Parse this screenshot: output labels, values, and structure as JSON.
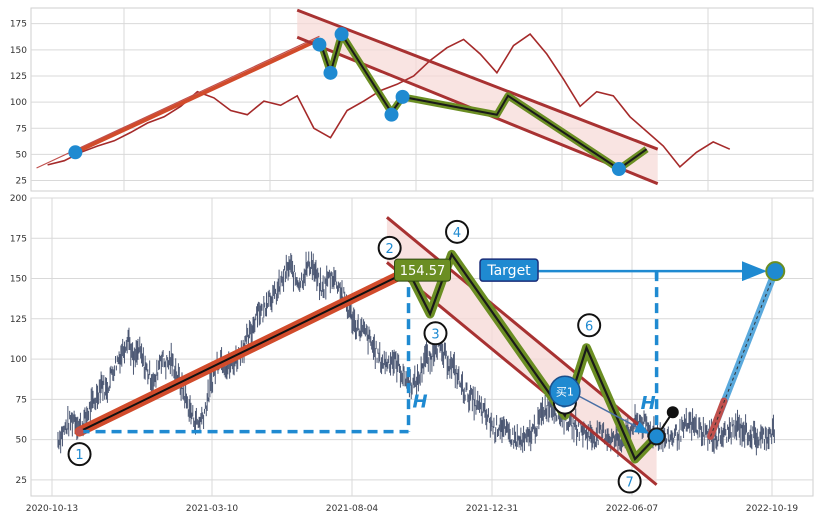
{
  "chart_data": [
    {
      "type": "line",
      "panel": "overview",
      "ylim": [
        15,
        190
      ],
      "yticks": [
        "25",
        "50",
        "75",
        "100",
        "125",
        "150",
        "175"
      ],
      "series": [
        {
          "color": "#a52a2a",
          "x": [
            0,
            3,
            6,
            9,
            12,
            15,
            18,
            21,
            24,
            27,
            30,
            33,
            36,
            39,
            42,
            45,
            48,
            51,
            54,
            57,
            60,
            63,
            66,
            69,
            72,
            75,
            78,
            81,
            84,
            87,
            90,
            93,
            96,
            99,
            102,
            105,
            108,
            111,
            114,
            117,
            120,
            123
          ],
          "values": [
            40,
            44,
            52,
            58,
            63,
            71,
            80,
            86,
            96,
            110,
            104,
            92,
            88,
            101,
            97,
            106,
            75,
            66,
            92,
            101,
            111,
            117,
            125,
            140,
            152,
            160,
            146,
            128,
            154,
            165,
            146,
            122,
            96,
            110,
            106,
            86,
            72,
            58,
            38,
            52,
            62,
            55
          ]
        }
      ],
      "uptrend_line": {
        "x": [
          5,
          49
        ],
        "values": [
          52,
          160
        ]
      },
      "channel_upper": {
        "x": [
          45,
          110
        ],
        "values": [
          188,
          55
        ]
      },
      "channel_lower": {
        "x": [
          45,
          110
        ],
        "values": [
          162,
          22
        ]
      },
      "pattern_path": {
        "x": [
          49,
          51,
          53,
          62,
          64,
          81,
          83,
          103,
          108
        ],
        "values": [
          160,
          128,
          165,
          90,
          105,
          88,
          106,
          36,
          55
        ]
      },
      "pivots": {
        "x": [
          5,
          49,
          51,
          53,
          62,
          64,
          103
        ],
        "values": [
          52,
          155,
          128,
          165,
          88,
          105,
          36
        ]
      }
    },
    {
      "type": "line",
      "panel": "detail",
      "ylim": [
        15,
        200
      ],
      "yticks": [
        "25",
        "50",
        "75",
        "100",
        "125",
        "150",
        "175",
        "200"
      ],
      "x_dates": [
        "2020-10-13",
        "2021-03-10",
        "2021-08-04",
        "2021-12-31",
        "2022-06-07",
        "2022-10-19"
      ],
      "price_points": {
        "x": [
          0,
          2,
          4,
          6,
          8,
          10,
          12,
          14,
          16,
          18,
          20,
          22,
          24,
          26,
          28,
          30,
          32,
          34,
          36,
          38,
          40,
          42,
          44,
          46,
          48,
          50,
          52,
          54,
          56,
          58,
          60,
          62,
          64,
          66,
          68,
          70,
          72,
          74,
          76,
          78,
          80,
          82,
          84,
          86,
          88,
          90,
          92,
          94,
          96,
          98,
          100,
          102,
          104,
          106,
          108,
          110,
          112,
          114,
          116,
          118,
          120,
          122,
          124,
          126,
          128,
          130,
          132,
          134,
          136,
          138,
          140,
          142,
          144,
          146,
          148,
          150,
          152,
          154,
          156,
          158,
          160,
          162,
          164,
          166,
          168,
          170,
          172,
          174,
          176,
          178,
          180,
          182,
          184,
          186,
          188,
          190,
          192,
          194,
          196,
          198,
          200,
          202,
          204,
          206,
          208,
          210,
          212,
          214,
          216,
          218,
          220,
          222,
          224,
          226,
          228,
          230,
          232,
          234,
          236,
          238,
          240,
          242,
          244,
          246,
          248,
          250,
          252,
          254,
          256,
          258,
          260,
          262,
          264,
          266
        ],
        "values": [
          50,
          55,
          60,
          64,
          58,
          62,
          70,
          75,
          86,
          80,
          92,
          99,
          105,
          115,
          98,
          106,
          96,
          90,
          85,
          102,
          97,
          99,
          91,
          82,
          72,
          64,
          60,
          66,
          78,
          92,
          102,
          96,
          95,
          100,
          106,
          111,
          118,
          132,
          128,
          140,
          138,
          144,
          152,
          158,
          150,
          148,
          156,
          160,
          150,
          142,
          150,
          152,
          146,
          138,
          130,
          122,
          118,
          116,
          110,
          104,
          98,
          98,
          100,
          96,
          90,
          86,
          84,
          88,
          102,
          98,
          110,
          104,
          100,
          96,
          90,
          82,
          78,
          74,
          70,
          66,
          62,
          56,
          60,
          54,
          52,
          50,
          48,
          50,
          55,
          60,
          68,
          72,
          70,
          66,
          64,
          60,
          58,
          56,
          54,
          52,
          52,
          54,
          52,
          50,
          50,
          52,
          55,
          60,
          62,
          58,
          56,
          54,
          52,
          50,
          52,
          54,
          56,
          60,
          58,
          56,
          54,
          52,
          50,
          52,
          54,
          56,
          58,
          56,
          54,
          52,
          50,
          52,
          54,
          56
        ]
      },
      "uptrend_line": {
        "x": [
          8,
          130
        ],
        "values": [
          55,
          154.57
        ]
      },
      "channel_upper": {
        "x": [
          122,
          222
        ],
        "values": [
          188,
          50
        ]
      },
      "channel_lower": {
        "x": [
          122,
          222
        ],
        "values": [
          160,
          22
        ]
      },
      "pattern_path": {
        "x": [
          130,
          138,
          146,
          188,
          196,
          214,
          222
        ],
        "values": [
          154.57,
          128,
          165,
          65,
          107,
          38,
          52
        ]
      },
      "projection": {
        "x": [
          242,
          266
        ],
        "values": [
          52,
          154.57
        ]
      },
      "measure_base_y": 55,
      "pivots": {
        "x": [
          8,
          130,
          138,
          146,
          188,
          196,
          214,
          222,
          266
        ],
        "values": [
          55,
          154.57,
          128,
          165,
          65,
          107,
          38,
          52,
          154.57
        ]
      },
      "pivot_labels": [
        "1",
        "2",
        "3",
        "4",
        "5",
        "6",
        "7"
      ],
      "annotations": {
        "price_label": "154.57",
        "target_label": "Target",
        "height_label": "H",
        "buy_label": "买1"
      }
    }
  ],
  "colors": {
    "price": "#a52a2a",
    "price_ticks": "#4a5672",
    "uptrend": "#d14b2b",
    "channel": "#a83232",
    "channel_fill": "#f6d8d6",
    "pattern": "#6b8e23",
    "accent": "#1f8ad1",
    "projection": "#5aa9dc"
  }
}
